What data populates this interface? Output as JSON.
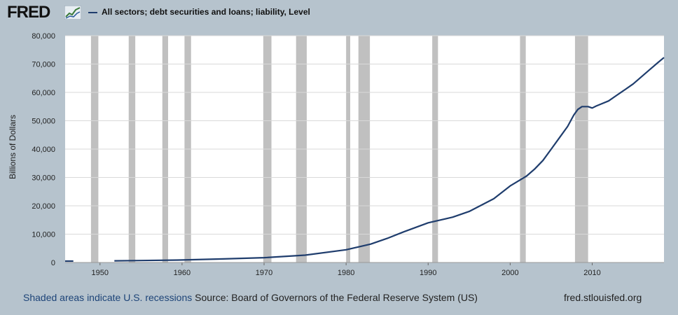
{
  "header": {
    "logo_text": "FRED",
    "logo_icon": "chart-line-icon"
  },
  "chart_data": {
    "type": "line",
    "title": "",
    "ylabel": "Billions of Dollars",
    "xlabel": "",
    "ylim": [
      0,
      80000
    ],
    "xlim": [
      1945.75,
      2018.75
    ],
    "y_ticks": [
      0,
      10000,
      20000,
      30000,
      40000,
      50000,
      60000,
      70000,
      80000
    ],
    "y_tick_labels": [
      "0",
      "10,000",
      "20,000",
      "30,000",
      "40,000",
      "50,000",
      "60,000",
      "70,000",
      "80,000"
    ],
    "x_ticks": [
      1950,
      1960,
      1970,
      1980,
      1990,
      2000,
      2010
    ],
    "x_tick_labels": [
      "1950",
      "1960",
      "1970",
      "1980",
      "1990",
      "2000",
      "2010"
    ],
    "grid": true,
    "legend_position": "top-left",
    "line_color": "#1f3d6d",
    "recession_color": "#c0c0c0",
    "recessions": [
      [
        1948.9,
        1949.8
      ],
      [
        1953.5,
        1954.3
      ],
      [
        1957.6,
        1958.3
      ],
      [
        1960.3,
        1961.1
      ],
      [
        1969.9,
        1970.9
      ],
      [
        1973.9,
        1975.2
      ],
      [
        1980.0,
        1980.5
      ],
      [
        1981.5,
        1982.9
      ],
      [
        1990.5,
        1991.2
      ],
      [
        2001.2,
        2001.9
      ],
      [
        2007.9,
        2009.5
      ]
    ],
    "series": [
      {
        "name": "All sectors; debt securities and loans; liability, Level",
        "segments": [
          {
            "x": [
              1945.75,
              1946.75
            ],
            "y": [
              500,
              500
            ]
          },
          {
            "x": [
              1951.75,
              1955,
              1960,
              1965,
              1970,
              1975,
              1980,
              1983,
              1985,
              1987,
              1990,
              1993,
              1995,
              1998,
              2000,
              2002,
              2003,
              2004,
              2005,
              2006,
              2007,
              2007.75,
              2008.25,
              2008.75,
              2009.5,
              2010,
              2010.5,
              2011,
              2012,
              2013,
              2014,
              2015,
              2016,
              2017,
              2018,
              2018.75
            ],
            "y": [
              600,
              700,
              900,
              1250,
              1700,
              2600,
              4500,
              6500,
              8500,
              10800,
              14000,
              16000,
              18000,
              22500,
              27000,
              30500,
              33000,
              36000,
              40000,
              44000,
              48000,
              52000,
              54000,
              55000,
              55000,
              54500,
              55200,
              55800,
              57000,
              59000,
              61000,
              63000,
              65500,
              68000,
              70500,
              72300
            ]
          }
        ]
      }
    ]
  },
  "footer": {
    "recession_note": "Shaded areas indicate U.S. recessions",
    "source": "Source: Board of Governors of the Federal Reserve System (US)",
    "site": "fred.stlouisfed.org"
  }
}
